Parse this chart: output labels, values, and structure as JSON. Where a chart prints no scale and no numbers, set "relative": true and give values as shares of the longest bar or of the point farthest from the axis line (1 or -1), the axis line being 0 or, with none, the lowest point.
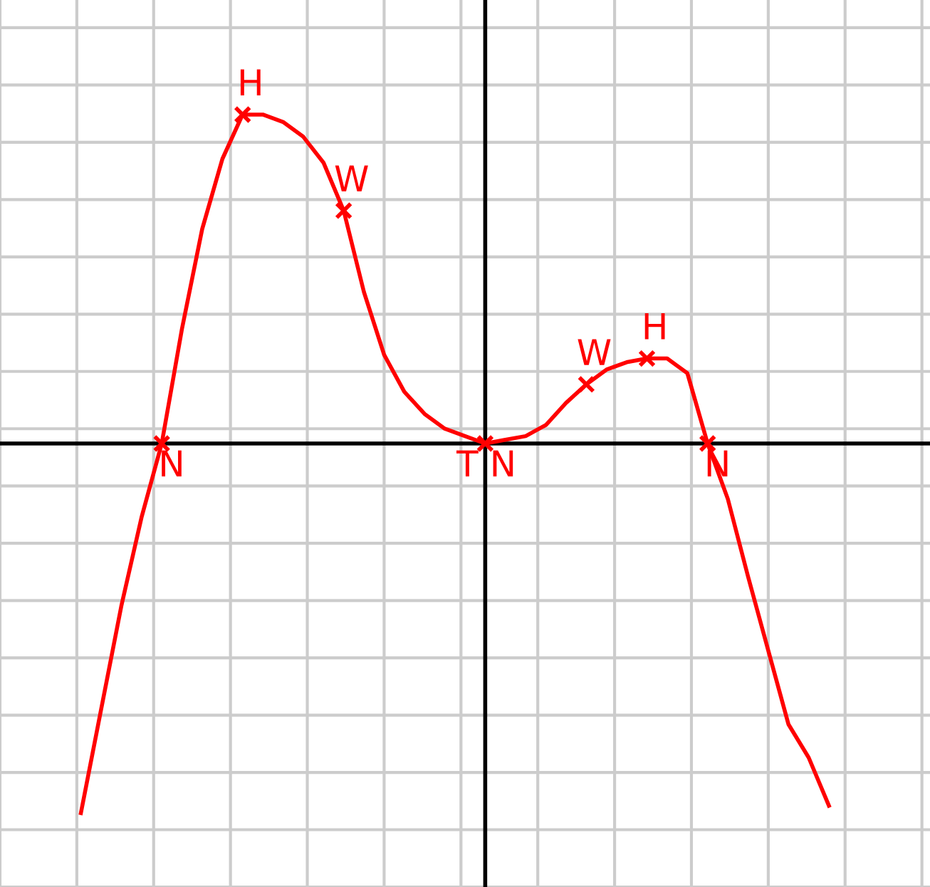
{
  "chart_data": {
    "type": "line",
    "relative": true,
    "grid": true,
    "marker": "none",
    "line_style": "solid",
    "categories": [
      null,
      null,
      null,
      null,
      null,
      null,
      null,
      null,
      null,
      null,
      null,
      null,
      null,
      null,
      null,
      null,
      null,
      null,
      null,
      null,
      null,
      null,
      null,
      null,
      null,
      null,
      null,
      null,
      null,
      null,
      null,
      null,
      null,
      null,
      null,
      null,
      null,
      null
    ],
    "series": [
      {
        "color": "#ff0000",
        "values": [
          -1.0,
          -0.72,
          -0.44,
          -0.2,
          0,
          0.31,
          0.58,
          0.77,
          0.89,
          0.89,
          0.87,
          0.83,
          0.76,
          0.63,
          0.41,
          0.24,
          0.14,
          0.08,
          0.04,
          0.02,
          0,
          0.01,
          0.02,
          0.05,
          0.11,
          0.16,
          0.2,
          0.22,
          0.23,
          0.23,
          0.19,
          0,
          -0.15,
          -0.36,
          -0.56,
          -0.76,
          -0.85,
          -0.98
        ]
      }
    ],
    "annotations": [
      {
        "text": "N",
        "y": 0
      },
      {
        "text": "H",
        "y": 0.89
      },
      {
        "text": "W",
        "y": 0.63
      },
      {
        "text": "T",
        "y": 0
      },
      {
        "text": "N",
        "y": 0
      },
      {
        "text": "W",
        "y": 0.16
      },
      {
        "text": "H",
        "y": 0.23
      },
      {
        "text": "N",
        "y": 0
      }
    ]
  }
}
